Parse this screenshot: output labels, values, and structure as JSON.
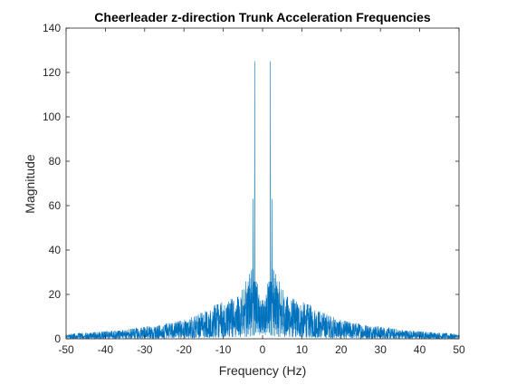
{
  "chart_data": {
    "type": "line",
    "title": "Cheerleader z-direction Trunk Acceleration Frequencies",
    "xlabel": "Frequency (Hz)",
    "ylabel": "Magnitude",
    "xlim": [
      -50,
      50
    ],
    "ylim": [
      0,
      140
    ],
    "xticks": [
      -50,
      -40,
      -30,
      -20,
      -10,
      0,
      10,
      20,
      30,
      40,
      50
    ],
    "yticks": [
      0,
      20,
      40,
      60,
      80,
      100,
      120,
      140
    ],
    "grid": false,
    "box": true,
    "line_color": "#0072BD",
    "series": [
      {
        "envelope": {
          "x": [
            -50,
            -45,
            -40,
            -35,
            -30,
            -25,
            -20,
            -15,
            -12,
            -10,
            -8,
            -6,
            -5,
            -4,
            -3,
            -2.5,
            -2,
            -1.5,
            -1,
            -0.5,
            0,
            0.5,
            1,
            1.5,
            2,
            2.5,
            3,
            4,
            5,
            6,
            8,
            10,
            12,
            15,
            20,
            25,
            30,
            35,
            40,
            45,
            50
          ],
          "y": [
            1.5,
            2,
            2.5,
            3,
            4,
            5,
            6,
            9,
            11,
            12,
            13,
            14,
            17,
            19,
            22,
            28,
            32,
            20,
            16,
            14,
            12,
            14,
            16,
            20,
            32,
            28,
            22,
            19,
            17,
            14,
            13,
            12,
            11,
            9,
            6,
            5,
            4,
            3,
            2.5,
            2,
            1.5
          ]
        },
        "peaks": [
          {
            "x": -2.0,
            "y": 125
          },
          {
            "x": 2.0,
            "y": 125
          },
          {
            "x": -2.4,
            "y": 63
          },
          {
            "x": 2.4,
            "y": 63
          }
        ]
      }
    ]
  }
}
